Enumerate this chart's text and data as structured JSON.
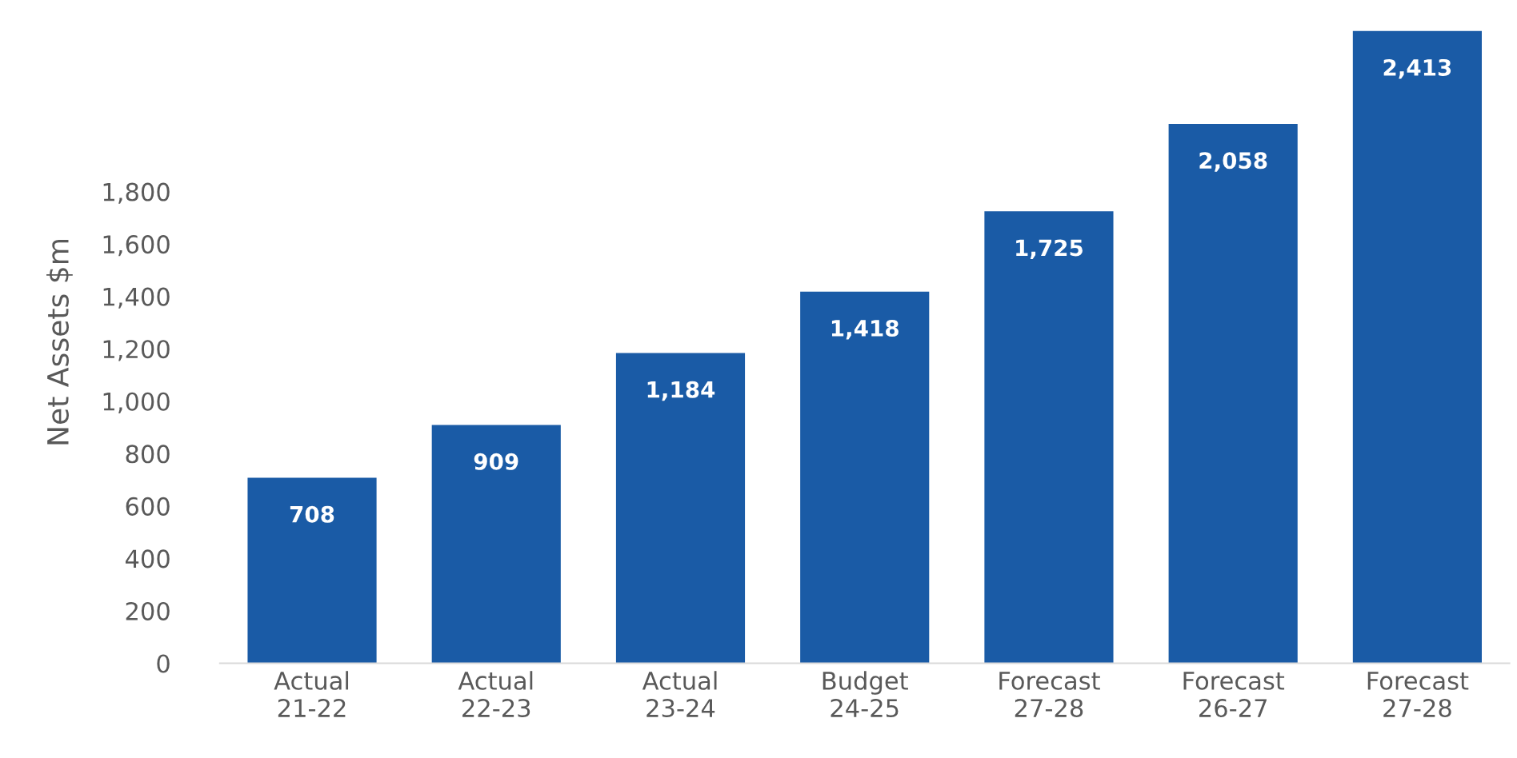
{
  "chart_data": {
    "type": "bar",
    "ylabel": "Net Assets $m",
    "categories": [
      "Actual\n21-22",
      "Actual\n22-23",
      "Actual\n23-24",
      "Budget\n24-25",
      "Forecast\n27-28",
      "Forecast\n26-27",
      "Forecast\n27-28"
    ],
    "values": [
      708,
      909,
      1184,
      1418,
      1725,
      2058,
      2413
    ],
    "value_labels": [
      "708",
      "909",
      "1,184",
      "1,418",
      "1,725",
      "2,058",
      "2,413"
    ],
    "color": "#1a5ba6",
    "ylim": [
      0,
      2450
    ],
    "yticks": [
      0,
      200,
      400,
      600,
      800,
      {
        "value": 1000,
        "label": "1,000"
      },
      {
        "value": 1200,
        "label": "1,200"
      },
      {
        "value": 1400,
        "label": "1,400"
      },
      {
        "value": 1600,
        "label": "1,600"
      },
      {
        "value": 1800,
        "label": "1,800"
      }
    ],
    "grid": false
  }
}
